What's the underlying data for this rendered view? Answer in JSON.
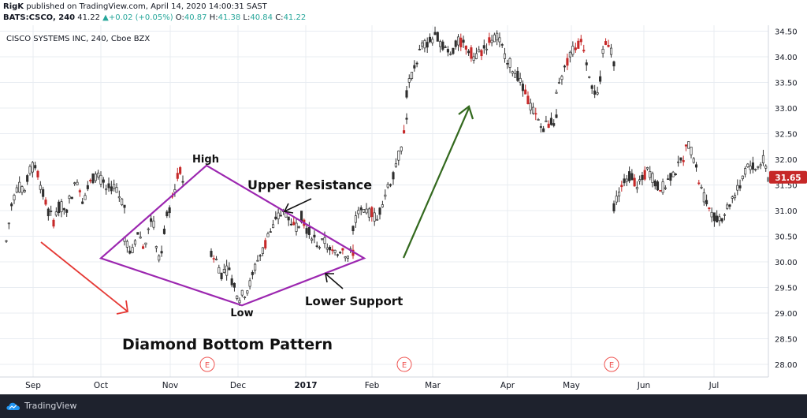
{
  "header": {
    "author": "RigK",
    "published_text": " published on TradingView.com, April 14, 2020 14:00:31 SAST",
    "symbol": "BATS:CSCO, 240",
    "last": "41.22",
    "change": "+0.02 (+0.05%)",
    "o_label": "O:",
    "o_val": "40.87",
    "h_label": "H:",
    "h_val": "41.38",
    "l_label": "L:",
    "l_val": "40.84",
    "c_label": "C:",
    "c_val": "41.22"
  },
  "chart_title": "CISCO SYSTEMS INC, 240, Cboe BZX",
  "footer": {
    "brand": "TradingView"
  },
  "colors": {
    "up": "#26a69a",
    "candle": "#2e2e2e",
    "down_accent": "#c62828",
    "diamond": "#9c27b0",
    "red_arrow": "#e53935",
    "green_arrow": "#33691e",
    "price_tag": "#c62828",
    "earnings": "#ef5350",
    "grid": "#e8ecf2"
  },
  "annotations": {
    "high": "High",
    "low": "Low",
    "upper_resistance": "Upper Resistance",
    "lower_support": "Lower Support",
    "pattern_title": "Diamond Bottom Pattern",
    "earnings_marker": "E"
  },
  "chart_data": {
    "type": "candlestick",
    "price_ticks": [
      28.0,
      28.5,
      29.0,
      29.5,
      30.0,
      30.5,
      31.0,
      31.5,
      32.0,
      32.5,
      33.0,
      33.5,
      34.0,
      34.5
    ],
    "ylim": [
      27.9,
      34.6
    ],
    "x_labels": [
      "Sep",
      "Oct",
      "Nov",
      "Dec",
      "2017",
      "Feb",
      "Mar",
      "Apr",
      "May",
      "Jun",
      "Jul"
    ],
    "last_price_label": "31.65",
    "last_price": 31.65,
    "earnings_count": 3,
    "diamond_points": {
      "left": 30.07,
      "high": 31.88,
      "right": 30.07,
      "low": 29.15
    },
    "segments": [
      {
        "start": 30.4,
        "path": [
          30.4,
          31.2,
          31.5,
          31.3,
          31.8,
          31.9,
          31.4,
          31.0,
          30.8,
          31.1,
          31.0,
          31.3,
          31.6,
          31.2,
          31.5,
          31.7,
          31.6,
          31.4,
          31.5,
          31.3,
          31.1
        ],
        "end": 31.0
      },
      {
        "path": [
          30.5,
          30.3,
          30.1,
          30.4,
          30.6,
          30.4,
          30.2,
          30.7,
          30.9,
          30.5,
          30.0,
          30.3,
          30.8,
          31.0,
          31.3,
          31.5,
          31.8,
          31.6
        ],
        "end": 31.6
      },
      {
        "path": [
          30.2,
          30.0,
          29.7,
          29.9,
          29.5,
          29.3,
          29.4,
          29.6,
          30.0,
          30.2,
          30.5,
          30.7,
          30.9,
          31.0,
          30.8,
          30.7,
          30.9,
          30.6,
          30.5,
          30.3,
          30.4,
          30.2,
          30.1,
          30.3,
          30.1,
          30.2
        ],
        "end": 30.2
      },
      {
        "path": [
          30.7,
          31.0,
          30.9,
          31.0,
          30.8,
          31.2,
          31.5,
          31.8,
          32.2,
          32.8
        ],
        "end": 32.8
      },
      {
        "path": [
          33.3,
          33.8,
          34.2,
          34.3,
          34.4,
          34.2,
          34.1,
          34.3,
          34.2,
          34.0,
          34.1,
          34.3,
          34.4,
          34.1,
          33.8,
          33.6,
          33.2,
          32.9,
          32.6,
          32.7,
          32.8
        ],
        "end": 32.8
      },
      {
        "path": [
          33.2,
          33.6,
          33.9,
          34.1,
          34.2,
          34.3,
          33.8,
          33.4,
          33.2,
          34.2,
          34.3,
          33.9
        ],
        "end": 33.9
      },
      {
        "path": [
          31.1,
          31.4,
          31.6,
          31.7,
          31.5,
          31.6,
          31.8,
          31.6,
          31.4,
          31.5,
          31.7,
          31.8,
          32.0,
          32.3,
          32.0,
          31.5,
          31.2,
          31.0,
          30.8,
          30.9,
          31.1,
          31.3,
          31.5,
          31.8,
          31.9,
          31.8,
          32.0,
          31.65
        ],
        "end": 31.65
      }
    ]
  }
}
